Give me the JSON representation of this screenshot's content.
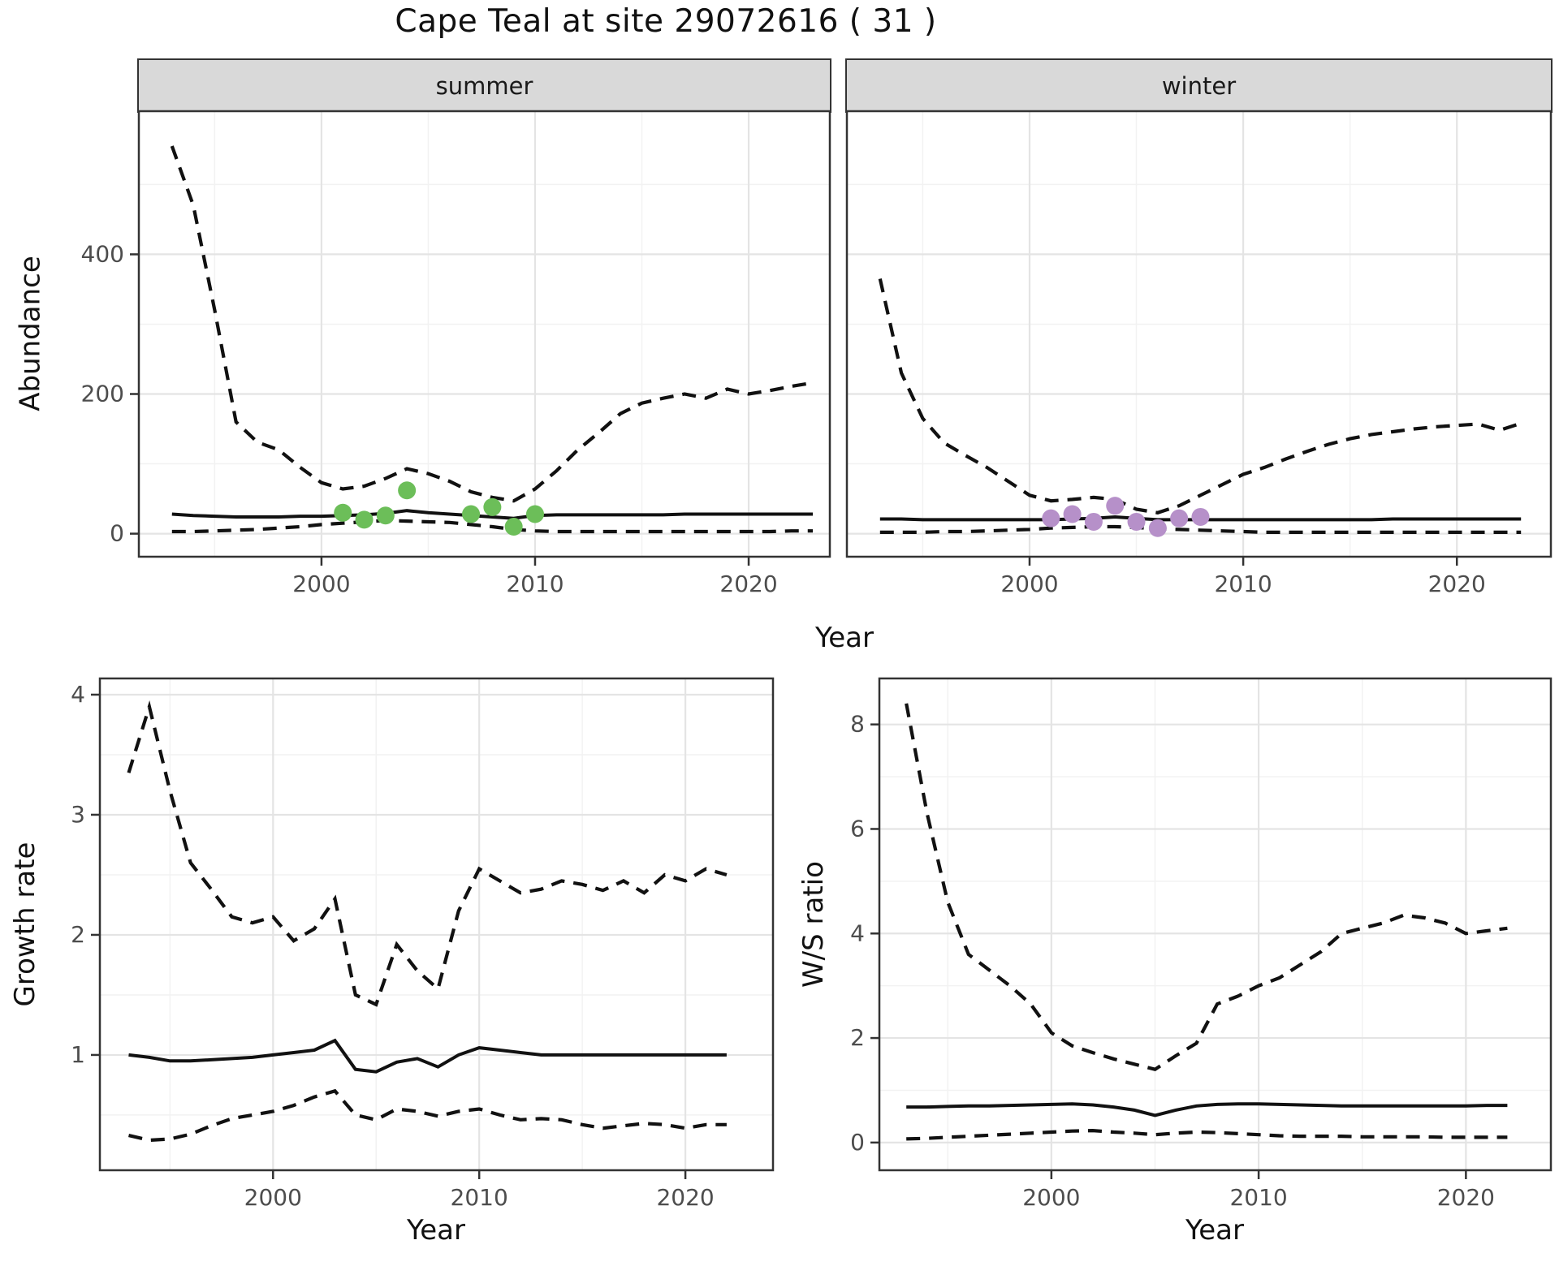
{
  "title": "Cape Teal at site 29072616 ( 31 )",
  "colors": {
    "summer_points": "#6cbe59",
    "winter_points": "#b690c9",
    "line": "#111111",
    "strip_bg": "#d9d9d9",
    "panel_border": "#333333",
    "grid_major": "#e4e4e4",
    "grid_minor": "#f2f2f2",
    "tick_mark": "#333333",
    "tick_label": "#4d4d4d"
  },
  "chart_data": [
    {
      "type": "line",
      "facet_label": "summer",
      "xlabel": "Year",
      "ylabel": "Abundance",
      "x": [
        1993,
        1994,
        1995,
        1996,
        1997,
        1998,
        1999,
        2000,
        2001,
        2002,
        2003,
        2004,
        2005,
        2006,
        2007,
        2008,
        2009,
        2010,
        2011,
        2012,
        2013,
        2014,
        2015,
        2016,
        2017,
        2018,
        2019,
        2020,
        2021,
        2022,
        2023
      ],
      "series": [
        {
          "name": "upper_95_ci",
          "style": "dashed",
          "values": [
            555,
            470,
            320,
            160,
            131,
            120,
            95,
            73,
            64,
            68,
            79,
            93,
            86,
            75,
            60,
            52,
            47,
            64,
            90,
            120,
            145,
            172,
            187,
            194,
            200,
            194,
            207,
            200,
            205,
            211,
            216
          ]
        },
        {
          "name": "median",
          "style": "solid",
          "values": [
            28,
            26,
            25,
            24,
            24,
            24,
            25,
            25,
            26,
            27,
            29,
            33,
            30,
            28,
            26,
            24,
            22,
            26,
            27,
            27,
            27,
            27,
            27,
            27,
            28,
            28,
            28,
            28,
            28,
            28,
            28
          ]
        },
        {
          "name": "lower_95_ci",
          "style": "dashed",
          "values": [
            3,
            3,
            4,
            5,
            6,
            8,
            10,
            13,
            15,
            17,
            19,
            18,
            17,
            16,
            13,
            10,
            6,
            4,
            3,
            3,
            3,
            3,
            3,
            3,
            3,
            3,
            3,
            3,
            3,
            4,
            4
          ]
        }
      ],
      "points": {
        "name": "observed_counts",
        "color_key": "summer_points",
        "x": [
          2001,
          2002,
          2003,
          2004,
          2007,
          2008,
          2009,
          2010
        ],
        "y": [
          30,
          20,
          26,
          62,
          28,
          38,
          10,
          28
        ]
      },
      "xlim": [
        1991.45,
        2023.8
      ],
      "ylim": [
        -33,
        605
      ],
      "xticks": [
        2000,
        2010,
        2020
      ],
      "yticks": [
        0,
        200,
        400
      ],
      "xminor": [
        1995,
        2005,
        2015
      ],
      "yminor": [
        100,
        300,
        500
      ],
      "grid": true,
      "legend": "none"
    },
    {
      "type": "line",
      "facet_label": "winter",
      "xlabel": "Year",
      "ylabel": "Abundance",
      "x": [
        1993,
        1994,
        1995,
        1996,
        1997,
        1998,
        1999,
        2000,
        2001,
        2002,
        2003,
        2004,
        2005,
        2006,
        2007,
        2008,
        2009,
        2010,
        2011,
        2012,
        2013,
        2014,
        2015,
        2016,
        2017,
        2018,
        2019,
        2020,
        2021,
        2022,
        2023
      ],
      "series": [
        {
          "name": "upper_95_ci",
          "style": "dashed",
          "values": [
            365,
            230,
            165,
            130,
            112,
            95,
            75,
            55,
            47,
            49,
            52,
            49,
            35,
            30,
            40,
            55,
            70,
            85,
            95,
            107,
            118,
            128,
            136,
            142,
            146,
            150,
            153,
            155,
            157,
            148,
            158
          ]
        },
        {
          "name": "median",
          "style": "solid",
          "values": [
            21,
            21,
            20,
            20,
            20,
            20,
            20,
            20,
            20,
            21,
            22,
            24,
            22,
            20,
            20,
            20,
            20,
            20,
            20,
            20,
            20,
            20,
            20,
            20,
            21,
            21,
            21,
            21,
            21,
            21,
            21
          ]
        },
        {
          "name": "lower_95_ci",
          "style": "dashed",
          "values": [
            2,
            2,
            2,
            3,
            3,
            4,
            5,
            6,
            8,
            9,
            10,
            10,
            9,
            7,
            6,
            5,
            4,
            3,
            2,
            2,
            2,
            2,
            2,
            2,
            2,
            2,
            2,
            2,
            2,
            2,
            2
          ]
        }
      ],
      "points": {
        "name": "observed_counts",
        "color_key": "winter_points",
        "x": [
          2001,
          2002,
          2003,
          2004,
          2005,
          2006,
          2007,
          2008
        ],
        "y": [
          22,
          28,
          17,
          40,
          17,
          8,
          22,
          24
        ]
      },
      "xlim": [
        1991.45,
        2024.4
      ],
      "ylim": [
        -33,
        605
      ],
      "xticks": [
        2000,
        2010,
        2020
      ],
      "yticks": [
        0,
        200,
        400
      ],
      "xminor": [
        1995,
        2005,
        2015
      ],
      "yminor": [
        100,
        300,
        500
      ],
      "grid": true,
      "legend": "none"
    },
    {
      "type": "line",
      "facet_label": "",
      "xlabel": "Year",
      "ylabel": "Growth rate",
      "x": [
        1993,
        1994,
        1995,
        1996,
        1997,
        1998,
        1999,
        2000,
        2001,
        2002,
        2003,
        2004,
        2005,
        2006,
        2007,
        2008,
        2009,
        2010,
        2011,
        2012,
        2013,
        2014,
        2015,
        2016,
        2017,
        2018,
        2019,
        2020,
        2021,
        2022
      ],
      "series": [
        {
          "name": "upper_95_ci",
          "style": "dashed",
          "values": [
            3.35,
            3.9,
            3.2,
            2.6,
            2.38,
            2.15,
            2.1,
            2.15,
            1.95,
            2.05,
            2.3,
            1.5,
            1.42,
            1.92,
            1.7,
            1.55,
            2.2,
            2.55,
            2.45,
            2.35,
            2.38,
            2.45,
            2.42,
            2.37,
            2.45,
            2.35,
            2.5,
            2.45,
            2.55,
            2.5
          ]
        },
        {
          "name": "median",
          "style": "solid",
          "values": [
            1.0,
            0.98,
            0.95,
            0.95,
            0.96,
            0.97,
            0.98,
            1.0,
            1.02,
            1.04,
            1.12,
            0.88,
            0.86,
            0.94,
            0.97,
            0.9,
            1.0,
            1.06,
            1.04,
            1.02,
            1.0,
            1.0,
            1.0,
            1.0,
            1.0,
            1.0,
            1.0,
            1.0,
            1.0,
            1.0
          ]
        },
        {
          "name": "lower_95_ci",
          "style": "dashed",
          "values": [
            0.33,
            0.29,
            0.3,
            0.34,
            0.41,
            0.47,
            0.5,
            0.53,
            0.58,
            0.65,
            0.7,
            0.5,
            0.46,
            0.55,
            0.53,
            0.49,
            0.53,
            0.55,
            0.5,
            0.46,
            0.47,
            0.46,
            0.42,
            0.39,
            0.41,
            0.43,
            0.42,
            0.39,
            0.42,
            0.42
          ]
        }
      ],
      "points": null,
      "xlim": [
        1991.6,
        2024.25
      ],
      "ylim": [
        0.04,
        4.135
      ],
      "xticks": [
        2000,
        2010,
        2020
      ],
      "yticks": [
        1,
        2,
        3,
        4
      ],
      "xminor": [
        1995,
        2005,
        2015
      ],
      "yminor": [
        0.5,
        1.5,
        2.5,
        3.5
      ],
      "grid": true,
      "legend": "none"
    },
    {
      "type": "line",
      "facet_label": "",
      "xlabel": "Year",
      "ylabel": "W/S ratio",
      "x": [
        1993,
        1994,
        1995,
        1996,
        1997,
        1998,
        1999,
        2000,
        2001,
        2002,
        2003,
        2004,
        2005,
        2006,
        2007,
        2008,
        2009,
        2010,
        2011,
        2012,
        2013,
        2014,
        2015,
        2016,
        2017,
        2018,
        2019,
        2020,
        2021,
        2022
      ],
      "series": [
        {
          "name": "upper_95_ci",
          "style": "dashed",
          "values": [
            8.4,
            6.3,
            4.6,
            3.6,
            3.3,
            3.0,
            2.65,
            2.1,
            1.85,
            1.72,
            1.6,
            1.5,
            1.4,
            1.66,
            1.9,
            2.65,
            2.8,
            3.0,
            3.15,
            3.4,
            3.65,
            4.0,
            4.1,
            4.2,
            4.35,
            4.3,
            4.2,
            4.0,
            4.05,
            4.1
          ]
        },
        {
          "name": "median",
          "style": "solid",
          "values": [
            0.68,
            0.68,
            0.69,
            0.7,
            0.7,
            0.71,
            0.72,
            0.73,
            0.74,
            0.72,
            0.68,
            0.62,
            0.52,
            0.62,
            0.7,
            0.73,
            0.74,
            0.74,
            0.73,
            0.72,
            0.71,
            0.7,
            0.7,
            0.7,
            0.7,
            0.7,
            0.7,
            0.7,
            0.71,
            0.71
          ]
        },
        {
          "name": "lower_95_ci",
          "style": "dashed",
          "values": [
            0.07,
            0.08,
            0.1,
            0.12,
            0.14,
            0.16,
            0.18,
            0.2,
            0.22,
            0.23,
            0.2,
            0.18,
            0.15,
            0.18,
            0.2,
            0.19,
            0.17,
            0.15,
            0.13,
            0.12,
            0.12,
            0.12,
            0.11,
            0.11,
            0.11,
            0.11,
            0.1,
            0.1,
            0.1,
            0.1
          ]
        }
      ],
      "points": null,
      "xlim": [
        1991.7,
        2024.1
      ],
      "ylim": [
        -0.53,
        8.88
      ],
      "xticks": [
        2000,
        2010,
        2020
      ],
      "yticks": [
        0,
        2,
        4,
        6,
        8
      ],
      "xminor": [
        1995,
        2005,
        2015
      ],
      "yminor": [
        1,
        3,
        5,
        7
      ],
      "grid": true,
      "legend": "none"
    }
  ]
}
